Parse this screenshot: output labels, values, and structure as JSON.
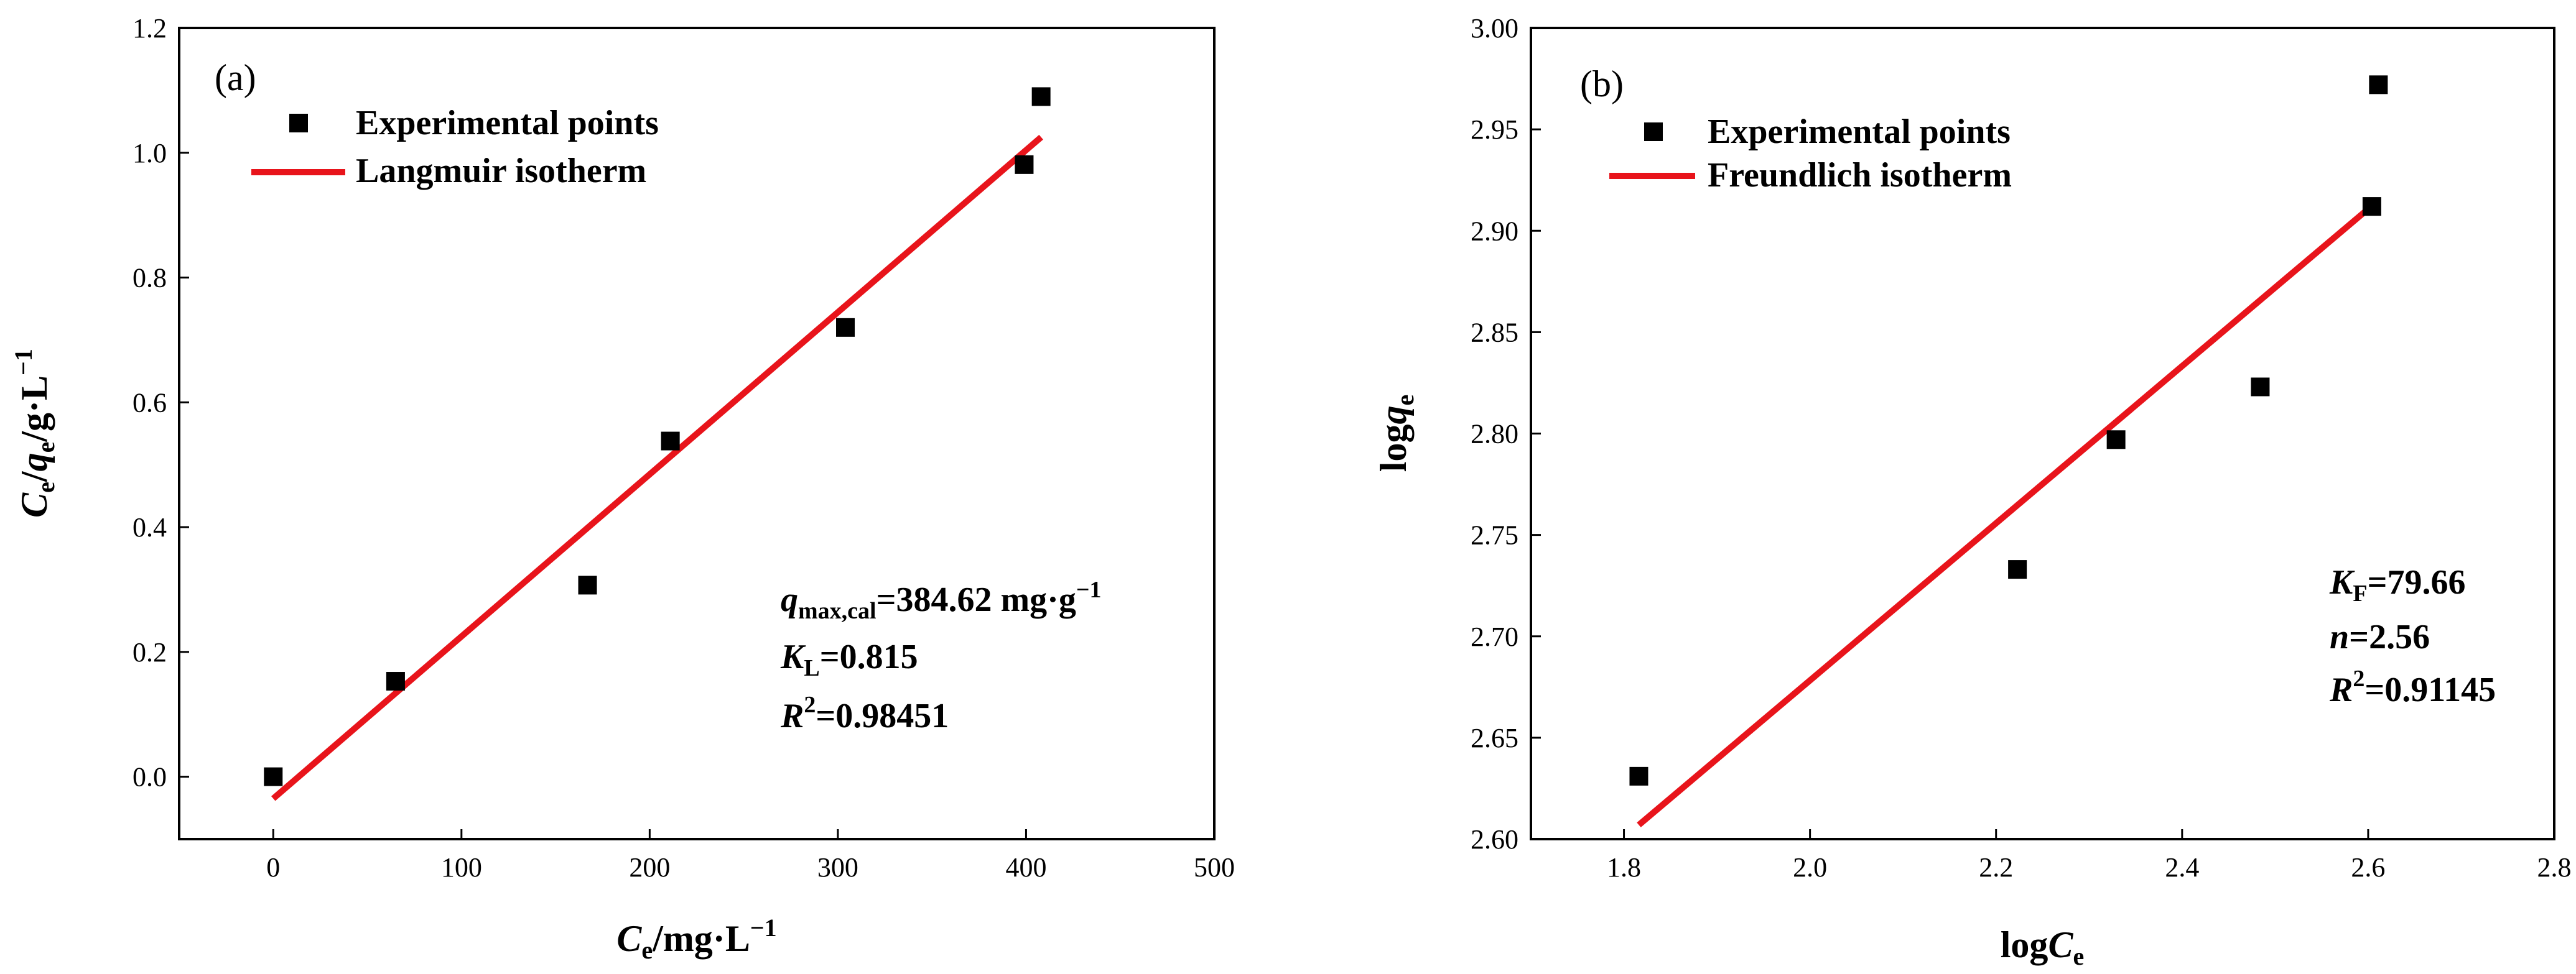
{
  "chart_data": [
    {
      "type": "scatter",
      "panel": "(a)",
      "xlim": [
        -50,
        500
      ],
      "ylim": [
        -0.1,
        1.2
      ],
      "x_ticks": [
        0,
        100,
        200,
        300,
        400,
        500
      ],
      "x_tick_labels": [
        "0",
        "100",
        "200",
        "300",
        "400",
        "500"
      ],
      "y_ticks": [
        0.0,
        0.2,
        0.4,
        0.6,
        0.8,
        1.0,
        1.2
      ],
      "y_tick_labels": [
        "0.0",
        "0.2",
        "0.4",
        "0.6",
        "0.8",
        "1.0",
        "1.2"
      ],
      "xlabel": {
        "main": "C",
        "sub": "e",
        "rest": "/mg·L",
        "sup": "−1"
      },
      "ylabel": {
        "c": "C",
        "e1": "e",
        "slash": "/",
        "q": "q",
        "e2": "e",
        "rest": "/g·L",
        "sup": "−1"
      },
      "series": [
        {
          "name": "Experimental points",
          "kind": "points",
          "color": "#000000",
          "x": [
            0,
            65,
            167,
            211,
            304,
            399,
            408
          ],
          "y": [
            0.0,
            0.153,
            0.307,
            0.538,
            0.72,
            0.981,
            1.09
          ]
        },
        {
          "name": "Langmuir isotherm",
          "kind": "line",
          "color": "#e8141b",
          "x": [
            0,
            408
          ],
          "y": [
            -0.035,
            1.025
          ]
        }
      ],
      "legend_labels": [
        "Experimental points",
        "Langmuir isotherm"
      ],
      "stats": {
        "qmax_sym": "q",
        "qmax_sub": "max,cal",
        "qmax_value": "=384.62 mg·g",
        "qmax_sup": "−1",
        "kl_sym": "K",
        "kl_sub": "L",
        "kl_value": "=0.815",
        "r2_sym": "R",
        "r2_sup": "2",
        "r2_value": "=0.98451"
      }
    },
    {
      "type": "scatter",
      "panel": "(b)",
      "xlim": [
        1.7,
        2.8
      ],
      "ylim": [
        2.6,
        3.0
      ],
      "x_ticks": [
        1.8,
        2.0,
        2.2,
        2.4,
        2.6,
        2.8
      ],
      "x_tick_labels": [
        "1.8",
        "2.0",
        "2.2",
        "2.4",
        "2.6",
        "2.8"
      ],
      "y_ticks": [
        2.6,
        2.65,
        2.7,
        2.75,
        2.8,
        2.85,
        2.9,
        2.95,
        3.0
      ],
      "y_tick_labels": [
        "2.60",
        "2.65",
        "2.70",
        "2.75",
        "2.80",
        "2.85",
        "2.90",
        "2.95",
        "3.00"
      ],
      "xlabel": {
        "log": "log",
        "c": "C",
        "sub": "e"
      },
      "ylabel": {
        "log": "log",
        "q": "q",
        "sub": "e"
      },
      "series": [
        {
          "name": "Experimental points",
          "kind": "points",
          "color": "#000000",
          "x": [
            1.816,
            2.223,
            2.329,
            2.484,
            2.604,
            2.611
          ],
          "y": [
            2.631,
            2.733,
            2.797,
            2.823,
            2.912,
            2.972
          ]
        },
        {
          "name": "Freundlich isotherm",
          "kind": "line",
          "color": "#e8141b",
          "x": [
            1.816,
            2.611
          ],
          "y": [
            2.607,
            2.915
          ]
        }
      ],
      "legend_labels": [
        "Experimental points",
        "Freundlich isotherm"
      ],
      "stats": {
        "kf_sym": "K",
        "kf_sub": "F",
        "kf_value": "=79.66",
        "n_sym": "n",
        "n_value": "=2.56",
        "r2_sym": "R",
        "r2_sup": "2",
        "r2_value": "=0.91145"
      }
    }
  ]
}
